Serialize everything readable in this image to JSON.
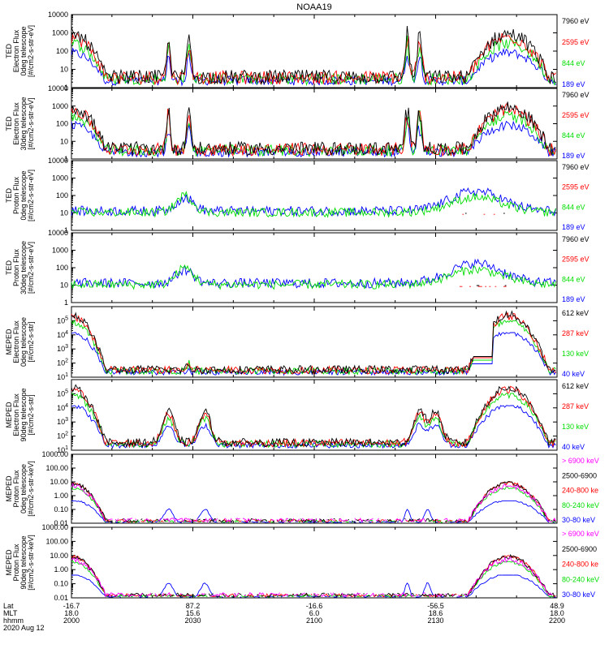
{
  "chart_data": {
    "type": "line",
    "title": "NOAA19",
    "x_axis": {
      "rows": [
        {
          "label": "Lat",
          "ticks": [
            "-16.7",
            "87.2",
            "-16.6",
            "-56.5",
            "48.9"
          ]
        },
        {
          "label": "MLT",
          "ticks": [
            "18.0",
            "15.6",
            "6.0",
            "18.6",
            "18.0"
          ]
        },
        {
          "label": "hhmm",
          "ticks": [
            "2000",
            "2030",
            "2100",
            "2130",
            "2200"
          ]
        }
      ],
      "date": "2020 Aug 12",
      "range_hhmm": [
        "2000",
        "2200"
      ]
    },
    "panels": [
      {
        "ylabel": [
          "TED",
          "Electron Flux",
          "0deg telescope",
          "[#/cm2-s-str-eV]"
        ],
        "yscale": "log",
        "ylim": [
          1,
          10000
        ],
        "yticks": [
          "1",
          "10",
          "100",
          "1000",
          "10000"
        ],
        "series": [
          {
            "name": "7960 eV",
            "color": "#000000"
          },
          {
            "name": "2595 eV",
            "color": "#ff0000"
          },
          {
            "name": "844 eV",
            "color": "#00dd00"
          },
          {
            "name": "189 eV",
            "color": "#0000ff"
          }
        ]
      },
      {
        "ylabel": [
          "TED",
          "Electron Flux",
          "30deg telescope",
          "[#/cm2-s-str-eV]"
        ],
        "yscale": "log",
        "ylim": [
          1,
          10000
        ],
        "yticks": [
          "1",
          "10",
          "100",
          "1000",
          "10000"
        ],
        "series": [
          {
            "name": "7960 eV",
            "color": "#000000"
          },
          {
            "name": "2595 eV",
            "color": "#ff0000"
          },
          {
            "name": "844 eV",
            "color": "#00dd00"
          },
          {
            "name": "189 eV",
            "color": "#0000ff"
          }
        ]
      },
      {
        "ylabel": [
          "TED",
          "Proton Flux",
          "0deg telescope",
          "[#/cm2-s-str-eV]"
        ],
        "yscale": "log",
        "ylim": [
          1,
          10000
        ],
        "yticks": [
          "1",
          "10",
          "100",
          "1000",
          "10000"
        ],
        "series": [
          {
            "name": "7960 eV",
            "color": "#000000"
          },
          {
            "name": "2595 eV",
            "color": "#ff0000"
          },
          {
            "name": "844 eV",
            "color": "#00dd00"
          },
          {
            "name": "189 eV",
            "color": "#0000ff"
          }
        ]
      },
      {
        "ylabel": [
          "TED",
          "Proton Flux",
          "30deg telescope",
          "[#/cm2-s-str-eV]"
        ],
        "yscale": "log",
        "ylim": [
          1,
          10000
        ],
        "yticks": [
          "1",
          "10",
          "100",
          "1000",
          "10000"
        ],
        "series": [
          {
            "name": "7960 eV",
            "color": "#000000"
          },
          {
            "name": "2595 eV",
            "color": "#ff0000"
          },
          {
            "name": "844 eV",
            "color": "#00dd00"
          },
          {
            "name": "189 eV",
            "color": "#0000ff"
          }
        ]
      },
      {
        "ylabel": [
          "MEPED",
          "Electron Flux",
          "0deg telescope",
          "[#/cm2-s-str]"
        ],
        "yscale": "log",
        "ylim": [
          10,
          1000000
        ],
        "yticks": [
          "10^1",
          "10^2",
          "10^3",
          "10^4",
          "10^5"
        ],
        "series": [
          {
            "name": "612 keV",
            "color": "#000000"
          },
          {
            "name": "287 keV",
            "color": "#ff0000"
          },
          {
            "name": "130 keV",
            "color": "#00dd00"
          },
          {
            "name": "40 keV",
            "color": "#0000ff"
          }
        ]
      },
      {
        "ylabel": [
          "MEPED",
          "Electron Flux",
          "90deg telescope",
          "[#/cm2-s-str]"
        ],
        "yscale": "log",
        "ylim": [
          10,
          1000000
        ],
        "yticks": [
          "10^1",
          "10^2",
          "10^3",
          "10^4",
          "10^5"
        ],
        "series": [
          {
            "name": "612 keV",
            "color": "#000000"
          },
          {
            "name": "287 keV",
            "color": "#ff0000"
          },
          {
            "name": "130 keV",
            "color": "#00dd00"
          },
          {
            "name": "40 keV",
            "color": "#0000ff"
          }
        ]
      },
      {
        "ylabel": [
          "MEPED",
          "Proton Flux",
          "0deg telescope",
          "[#/cm2-s-str-keV]"
        ],
        "yscale": "log",
        "ylim": [
          0.01,
          1000
        ],
        "yticks": [
          "0.01",
          "0.10",
          "1.00",
          "10.00",
          "100.00",
          "1000.00"
        ],
        "series": [
          {
            "name": "> 6900 keV",
            "color": "#ff00ff"
          },
          {
            "name": "2500-6900",
            "color": "#000000"
          },
          {
            "name": "240-800 ke",
            "color": "#ff0000"
          },
          {
            "name": "80-240 keV",
            "color": "#00dd00"
          },
          {
            "name": "30-80 keV",
            "color": "#0000ff"
          }
        ]
      },
      {
        "ylabel": [
          "MEPED",
          "Proton Flux",
          "90deg telescope",
          "[#/cm2-s-str-keV]"
        ],
        "yscale": "log",
        "ylim": [
          0.01,
          1000
        ],
        "yticks": [
          "0.01",
          "0.10",
          "1.00",
          "10.00",
          "100.00",
          "1000.00"
        ],
        "series": [
          {
            "name": "> 6900 keV",
            "color": "#ff00ff"
          },
          {
            "name": "2500-6900",
            "color": "#000000"
          },
          {
            "name": "240-800 ke",
            "color": "#ff0000"
          },
          {
            "name": "80-240 keV",
            "color": "#00dd00"
          },
          {
            "name": "30-80 keV",
            "color": "#0000ff"
          }
        ]
      }
    ]
  }
}
